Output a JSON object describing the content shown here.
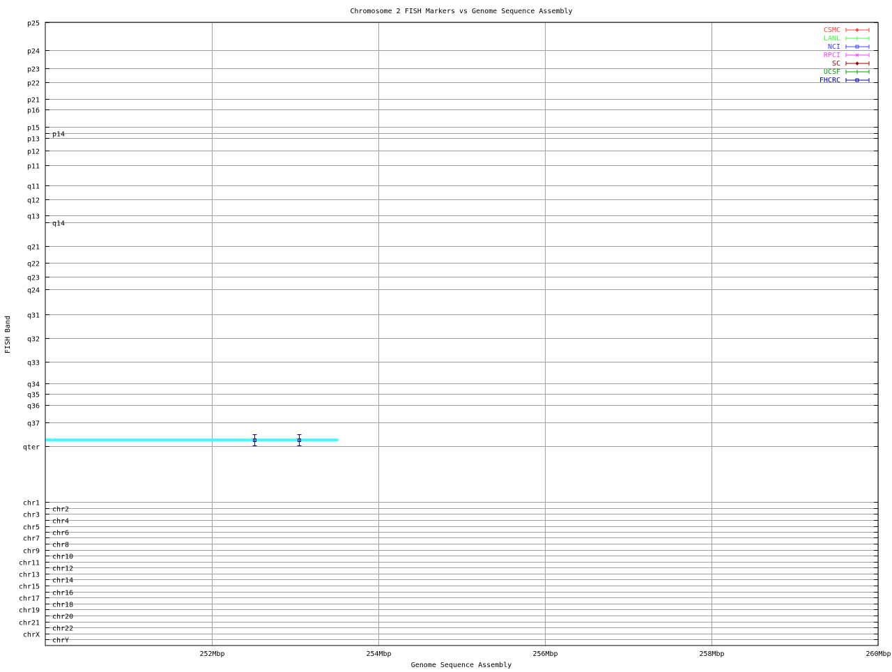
{
  "chart_data": {
    "type": "scatter",
    "title": "Chromosome 2 FISH Markers vs Genome Sequence Assembly",
    "xlabel": "Genome Sequence Assembly",
    "ylabel": "FISH Band",
    "xlim": [
      250,
      260
    ],
    "x_unit": "Mbp",
    "x_ticks": [
      "252Mbp",
      "254Mbp",
      "256Mbp",
      "258Mbp",
      "260Mbp"
    ],
    "y_ticks": [
      "p25",
      "p24",
      "p23",
      "p22",
      "p21",
      "p16",
      "p15",
      "p14",
      "p13",
      "p12",
      "p11",
      "q11",
      "q12",
      "q13",
      "q14",
      "q21",
      "q22",
      "q23",
      "q24",
      "q31",
      "q32",
      "q33",
      "q34",
      "q35",
      "q36",
      "q37",
      "qter",
      "chr1",
      "chr2",
      "chr3",
      "chr4",
      "chr5",
      "chr6",
      "chr7",
      "chr8",
      "chr9",
      "chr10",
      "chr11",
      "chr12",
      "chr13",
      "chr14",
      "chr15",
      "chr16",
      "chr17",
      "chr18",
      "chr19",
      "chr20",
      "chr21",
      "chr22",
      "chrX",
      "chrY"
    ],
    "grid": true,
    "legend_position": "top-right",
    "legend": [
      {
        "name": "CSMC",
        "color": "#ff4040",
        "marker": "diamond"
      },
      {
        "name": "LANL",
        "color": "#40ff40",
        "marker": "plus"
      },
      {
        "name": "NCI",
        "color": "#4040ff",
        "marker": "square"
      },
      {
        "name": "RPCI",
        "color": "#ff40ff",
        "marker": "cross"
      },
      {
        "name": "SC",
        "color": "#a00000",
        "marker": "diamond"
      },
      {
        "name": "UCSF",
        "color": "#00a000",
        "marker": "plus"
      },
      {
        "name": "FHCRC",
        "color": "#0000a0",
        "marker": "square"
      }
    ],
    "assembly_span": {
      "x_start": 250,
      "x_end": 253.52,
      "band": "q37-qter",
      "color": "#40ffff"
    },
    "series": [
      {
        "name": "FHCRC",
        "color": "#0000a0",
        "points": [
          {
            "x": 252.51,
            "band": "q37-qter"
          },
          {
            "x": 253.05,
            "band": "q37-qter"
          }
        ]
      }
    ]
  }
}
